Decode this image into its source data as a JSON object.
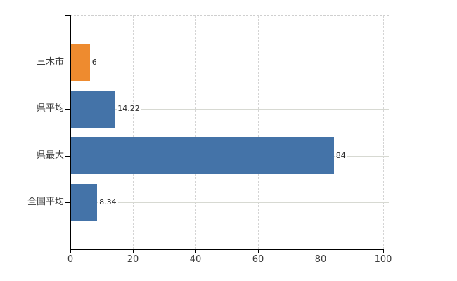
{
  "chart_data": {
    "type": "bar",
    "orientation": "horizontal",
    "title": "",
    "xlabel": "",
    "ylabel": "",
    "categories": [
      "三木市",
      "県平均",
      "県最大",
      "全国平均"
    ],
    "values": [
      6,
      14.22,
      84,
      8.34
    ],
    "value_labels": [
      "6",
      "14.22",
      "84",
      "8.34"
    ],
    "bar_colors": [
      "#ee8b2f",
      "#4473a8",
      "#4473a8",
      "#4473a8"
    ],
    "xlim": [
      0,
      100
    ],
    "x_ticks": [
      0,
      20,
      40,
      60,
      80,
      100
    ],
    "x_tick_labels": [
      "0",
      "20",
      "40",
      "60",
      "80",
      "100"
    ],
    "legend": null,
    "grid": true
  },
  "style": {
    "axis_color": "#000000",
    "grid_color_vertical": "#d4d4d4",
    "grid_color_horizontal": "#d7d9d2",
    "label_color": "#3d3d3d",
    "value_label_color": "#2b2b2b",
    "background": "#ffffff"
  }
}
